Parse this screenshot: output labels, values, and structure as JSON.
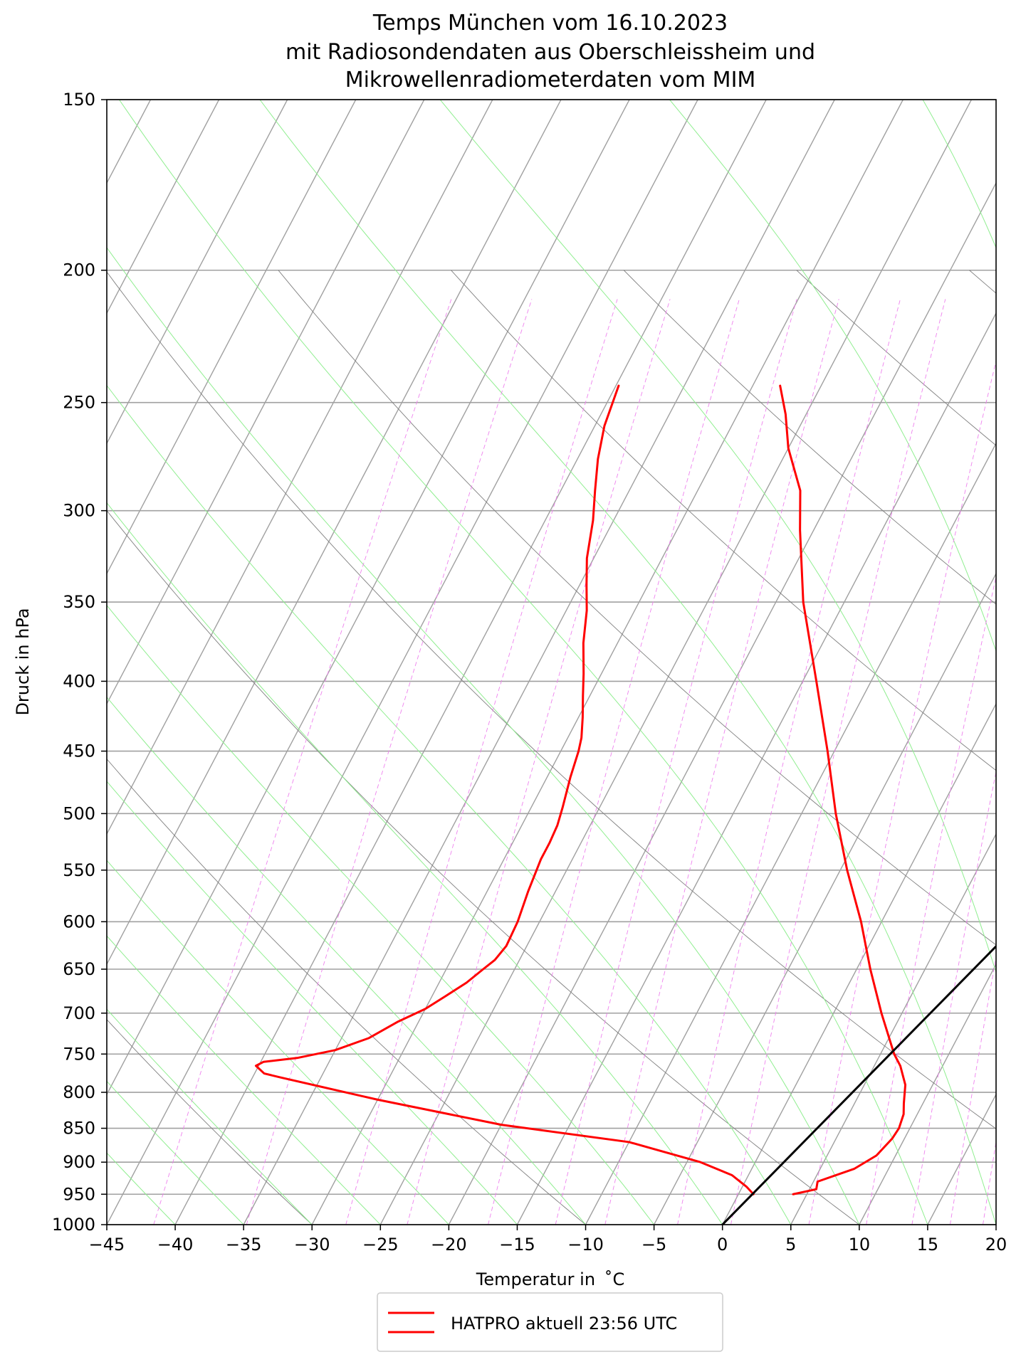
{
  "chart_data": {
    "type": "line",
    "title_lines": [
      "Temps München vom 16.10.2023",
      "mit Radiosondendaten aus Oberschleissheim und",
      "Mikrowellenradiometerdaten vom MIM"
    ],
    "xlabel": "Temperatur in  ˚C",
    "ylabel": "Druck in hPa",
    "xlim": [
      -45,
      20
    ],
    "ylim": [
      1000,
      150
    ],
    "y_scale": "log",
    "grid": true,
    "x_ticks": [
      -45,
      -40,
      -35,
      -30,
      -25,
      -20,
      -15,
      -10,
      -5,
      0,
      5,
      10,
      15,
      20
    ],
    "x_tick_labels": [
      "−45",
      "−40",
      "−35",
      "−30",
      "−25",
      "−20",
      "−15",
      "−10",
      "−5",
      "0",
      "5",
      "10",
      "15",
      "20"
    ],
    "y_ticks": [
      150,
      200,
      250,
      300,
      350,
      400,
      450,
      500,
      550,
      600,
      650,
      700,
      750,
      800,
      850,
      900,
      950,
      1000
    ],
    "y_tick_labels": [
      "150",
      "200",
      "250",
      "300",
      "350",
      "400",
      "450",
      "500",
      "550",
      "600",
      "650",
      "700",
      "750",
      "800",
      "850",
      "900",
      "950",
      "1000"
    ],
    "legend": {
      "placement": "below",
      "label": "HATPRO aktuell 23:56 UTC"
    },
    "colors": {
      "temperature": "#ff0000",
      "dewpoint": "#ff0000",
      "reference": "#000000",
      "isotherm": "#a0a0a0",
      "dry_adiabat": "#7f7f7f",
      "moist_adiabat": "#90ee90",
      "mixing_ratio": "#ee82ee"
    },
    "series": [
      {
        "role": "temperature",
        "color": "#ff0000",
        "points": [
          [
            4.0,
            950
          ],
          [
            5.5,
            942
          ],
          [
            5.3,
            930
          ],
          [
            7.5,
            910
          ],
          [
            8.6,
            890
          ],
          [
            9.1,
            865
          ],
          [
            9.2,
            850
          ],
          [
            9.0,
            830
          ],
          [
            8.6,
            815
          ],
          [
            8.0,
            790
          ],
          [
            6.9,
            765
          ],
          [
            6.0,
            750
          ],
          [
            3.5,
            700
          ],
          [
            1.0,
            650
          ],
          [
            -1.5,
            600
          ],
          [
            -4.5,
            550
          ],
          [
            -7.5,
            500
          ],
          [
            -10.5,
            450
          ],
          [
            -14.0,
            400
          ],
          [
            -18.0,
            350
          ],
          [
            -21.0,
            310
          ],
          [
            -22.5,
            290
          ],
          [
            -25.0,
            270
          ],
          [
            -26.5,
            255
          ],
          [
            -28.0,
            243
          ]
        ]
      },
      {
        "role": "dewpoint",
        "color": "#ff0000",
        "points": [
          [
            1.1,
            950
          ],
          [
            0.3,
            938
          ],
          [
            -1.2,
            920
          ],
          [
            -4.0,
            900
          ],
          [
            -10.0,
            870
          ],
          [
            -20.0,
            845
          ],
          [
            -30.0,
            810
          ],
          [
            -38.0,
            780
          ],
          [
            -39.3,
            775
          ],
          [
            -40.2,
            765
          ],
          [
            -39.8,
            760
          ],
          [
            -37.5,
            755
          ],
          [
            -35.0,
            745
          ],
          [
            -33.0,
            730
          ],
          [
            -31.5,
            710
          ],
          [
            -30.0,
            695
          ],
          [
            -29.0,
            680
          ],
          [
            -28.0,
            665
          ],
          [
            -27.3,
            650
          ],
          [
            -26.8,
            640
          ],
          [
            -26.5,
            625
          ],
          [
            -26.6,
            600
          ],
          [
            -27.0,
            570
          ],
          [
            -27.3,
            540
          ],
          [
            -27.3,
            525
          ],
          [
            -27.4,
            510
          ],
          [
            -27.7,
            495
          ],
          [
            -28.3,
            470
          ],
          [
            -28.7,
            450
          ],
          [
            -29.0,
            440
          ],
          [
            -29.7,
            425
          ],
          [
            -30.5,
            410
          ],
          [
            -31.3,
            395
          ],
          [
            -32.5,
            375
          ],
          [
            -33.5,
            355
          ],
          [
            -34.5,
            340
          ],
          [
            -35.5,
            325
          ],
          [
            -36.5,
            305
          ],
          [
            -37.5,
            290
          ],
          [
            -38.5,
            275
          ],
          [
            -39.3,
            260
          ],
          [
            -39.8,
            243
          ]
        ]
      },
      {
        "role": "reference",
        "color": "#000000",
        "points": [
          [
            0,
            1000
          ],
          [
            20,
            365
          ]
        ]
      }
    ]
  }
}
